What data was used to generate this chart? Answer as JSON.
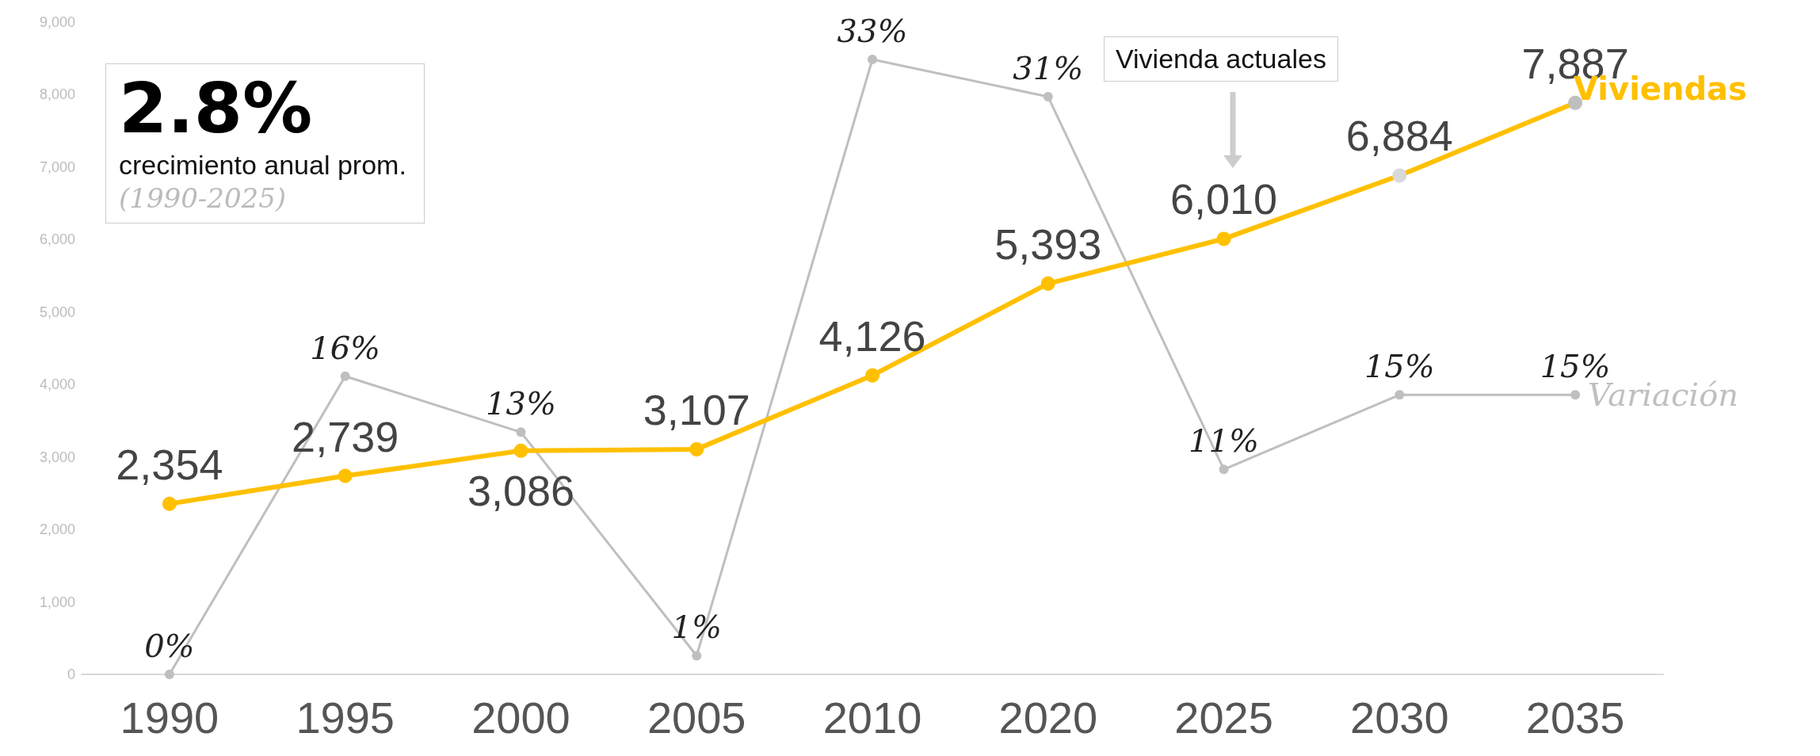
{
  "chart_data": {
    "type": "line",
    "categories": [
      "1990",
      "1995",
      "2000",
      "2005",
      "2010",
      "2020",
      "2025",
      "2030",
      "2035"
    ],
    "ylim": [
      0,
      9000
    ],
    "yticks": [
      0,
      {
        "value": 1000,
        "label": "1,000"
      },
      {
        "value": 2000,
        "label": "2,000"
      },
      {
        "value": 3000,
        "label": "3,000"
      },
      {
        "value": 4000,
        "label": "4,000"
      },
      {
        "value": 5000,
        "label": "5,000"
      },
      {
        "value": 6000,
        "label": "6,000"
      },
      {
        "value": 7000,
        "label": "7,000"
      },
      {
        "value": 8000,
        "label": "8,000"
      },
      {
        "value": 9000,
        "label": "9,000"
      }
    ],
    "tick_labels": "xy",
    "grid": false,
    "legend": false,
    "marker": "circle",
    "series": [
      {
        "name": "Viviendas",
        "color": "#ffc000",
        "colors": [
          "#ffc000",
          "#ffc000",
          "#ffc000",
          "#ffc000",
          "#ffc000",
          "#ffc000",
          "#ffc000",
          "#d9d9d9",
          "#bfbfbf"
        ],
        "values": [
          2354,
          2739,
          3086,
          3107,
          4126,
          5393,
          6010,
          6884,
          7887
        ],
        "value_labels": [
          "2,354",
          "2,739",
          "3,086",
          "3,107",
          "4,126",
          "5,393",
          "6,010",
          "6,884",
          "7,887"
        ]
      },
      {
        "name": "Variación",
        "color": "#bfbfbf",
        "axis": "y2",
        "values": [
          0,
          16,
          13,
          1,
          33,
          31,
          11,
          15,
          15
        ],
        "value_labels": [
          "0%",
          "16%",
          "13%",
          "1%",
          "33%",
          "31%",
          "11%",
          "15%",
          "15%"
        ]
      }
    ],
    "annotations": [
      "2.8%",
      "crecimiento anual prom.",
      "(1990-2025)",
      "Vivienda actuales"
    ]
  }
}
